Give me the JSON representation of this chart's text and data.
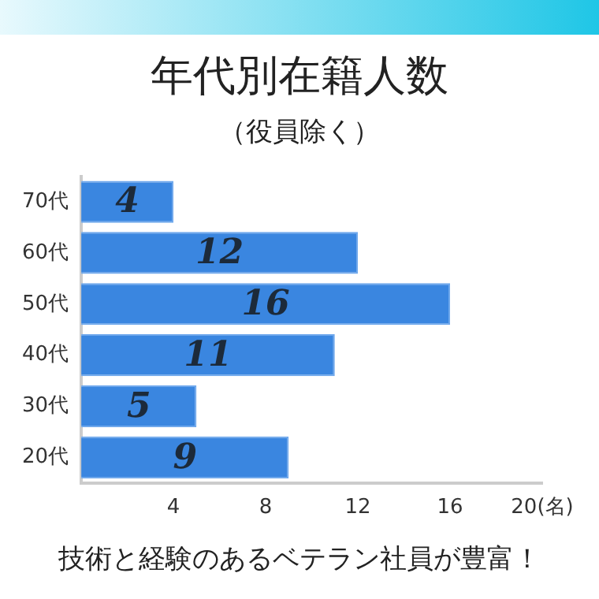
{
  "chart_data": {
    "type": "bar",
    "orientation": "horizontal",
    "title": "年代別在籍人数",
    "subtitle": "（役員除く）",
    "categories": [
      "70代",
      "60代",
      "50代",
      "40代",
      "30代",
      "20代"
    ],
    "values": [
      4,
      12,
      16,
      11,
      5,
      9
    ],
    "color": "#3a86e0",
    "xlim": [
      0,
      20
    ],
    "xticks": [
      4,
      8,
      12,
      16,
      {
        "value": 20,
        "label": "20(名)"
      }
    ],
    "grid": false,
    "legend": false,
    "data_labels": true,
    "annotations": [
      "技術と経験のあるベテラン社員が豊富！"
    ]
  }
}
